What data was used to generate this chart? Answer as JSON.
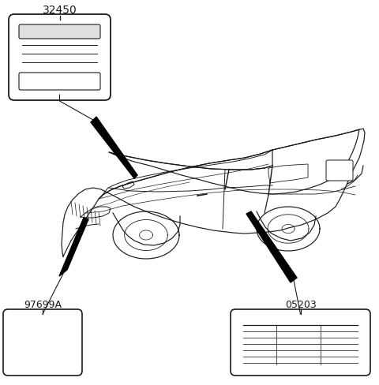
{
  "bg_color": "#ffffff",
  "line_color": "#1a1a1a",
  "label_32450": "32450",
  "label_97699A": "97699A",
  "label_05203": "05203",
  "figsize": [
    4.8,
    4.88
  ],
  "dpi": 100
}
